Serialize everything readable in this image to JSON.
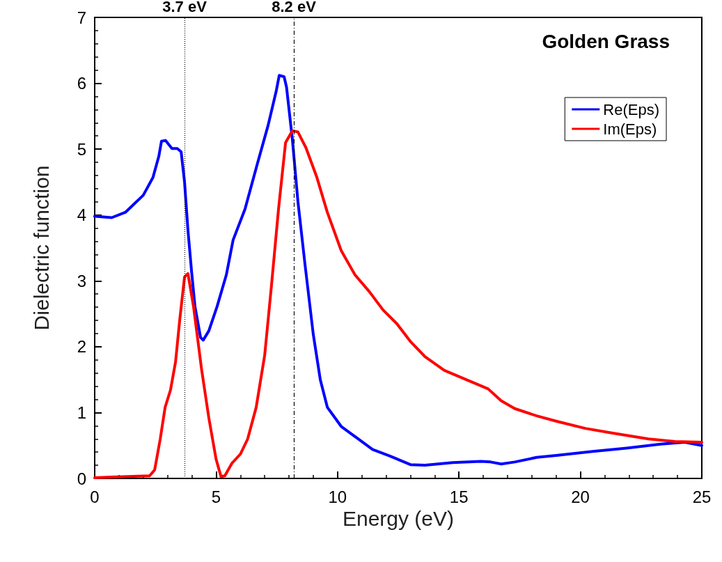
{
  "chart_data": {
    "type": "line",
    "title": "Golden Grass",
    "xlabel": "Energy (eV)",
    "ylabel": "Dielectric function",
    "xlim": [
      0,
      25
    ],
    "xticks": [
      0,
      5,
      10,
      15,
      20,
      25
    ],
    "ylim": [
      0,
      7
    ],
    "yticks": [
      0,
      1,
      2,
      3,
      4,
      5,
      6,
      7
    ],
    "grid": false,
    "legend": "top right",
    "marker": "none",
    "line_style": "solid",
    "ref_lines": [
      {
        "axis": "x",
        "value": 3.7,
        "label": "3.7 eV",
        "color": "#000000",
        "line_style": "dotted"
      },
      {
        "axis": "x",
        "value": 8.2,
        "label": "8.2 eV",
        "color": "#000000",
        "line_style": "dashed"
      }
    ],
    "series": [
      {
        "name": "Re(Eps)",
        "color": "#0000ff",
        "x": [
          0,
          0.7,
          1.26,
          2.0,
          2.4,
          2.64,
          2.75,
          2.92,
          3.18,
          3.4,
          3.56,
          3.7,
          3.84,
          3.99,
          4.13,
          4.36,
          4.47,
          4.7,
          5.04,
          5.42,
          5.7,
          6.19,
          6.7,
          7.14,
          7.48,
          7.6,
          7.8,
          7.9,
          8.14,
          8.37,
          8.66,
          9.0,
          9.29,
          9.58,
          10.15,
          10.78,
          11.44,
          12.16,
          13.0,
          13.6,
          14.74,
          15.9,
          16.3,
          16.74,
          17.3,
          18.2,
          19.0,
          20.5,
          21.9,
          23.3,
          24.3,
          25
        ],
        "values": [
          3.98,
          3.96,
          4.04,
          4.3,
          4.57,
          4.89,
          5.12,
          5.13,
          5.01,
          5.01,
          4.96,
          4.5,
          3.77,
          3.14,
          2.61,
          2.14,
          2.1,
          2.24,
          2.61,
          3.09,
          3.62,
          4.09,
          4.78,
          5.36,
          5.89,
          6.12,
          6.1,
          5.94,
          5.15,
          4.2,
          3.25,
          2.19,
          1.5,
          1.08,
          0.79,
          0.62,
          0.44,
          0.34,
          0.21,
          0.2,
          0.24,
          0.26,
          0.25,
          0.22,
          0.25,
          0.32,
          0.35,
          0.41,
          0.46,
          0.52,
          0.55,
          0.5
        ]
      },
      {
        "name": "Im(Eps)",
        "color": "#ff0000",
        "x": [
          0,
          0.7,
          2.26,
          2.47,
          2.7,
          2.9,
          3.12,
          3.33,
          3.5,
          3.7,
          3.84,
          4.07,
          4.4,
          4.7,
          5.0,
          5.2,
          5.36,
          5.65,
          6.0,
          6.3,
          6.65,
          7.0,
          7.28,
          7.57,
          7.86,
          8.14,
          8.37,
          8.7,
          9.15,
          9.58,
          10.15,
          10.72,
          11.3,
          11.87,
          12.44,
          13.0,
          13.6,
          14.4,
          15.3,
          16.2,
          16.74,
          17.3,
          18.2,
          19.0,
          20.2,
          21.3,
          22.8,
          23.9,
          25
        ],
        "values": [
          0.01,
          0.02,
          0.04,
          0.13,
          0.6,
          1.08,
          1.34,
          1.77,
          2.4,
          3.06,
          3.11,
          2.61,
          1.66,
          0.92,
          0.29,
          0.03,
          0.04,
          0.23,
          0.37,
          0.6,
          1.08,
          1.87,
          2.93,
          4.09,
          5.1,
          5.28,
          5.26,
          5.02,
          4.57,
          4.04,
          3.46,
          3.09,
          2.84,
          2.56,
          2.35,
          2.08,
          1.85,
          1.64,
          1.5,
          1.36,
          1.18,
          1.06,
          0.95,
          0.87,
          0.76,
          0.69,
          0.6,
          0.56,
          0.55
        ]
      }
    ]
  }
}
